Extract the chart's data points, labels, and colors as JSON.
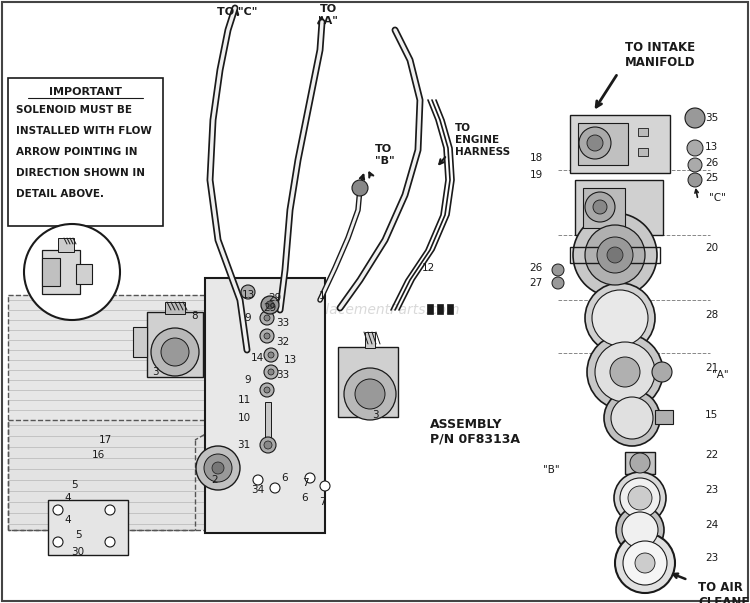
{
  "bg_color": "#ffffff",
  "lc": "#1a1a1a",
  "watermark": "eReplacementParts.com",
  "watermark_color": "#bbbbbb",
  "important_text": [
    "IMPORTANT",
    "SOLENOID MUST BE",
    "INSTALLED WITH FLOW",
    "ARROW POINTING IN",
    "DIRECTION SHOWN IN",
    "DETAIL ABOVE."
  ],
  "assembly_text": "ASSEMBLY\nP/N 0F8313A",
  "to_intake": "TO INTAKE\nMANIFOLD",
  "to_air": "TO AIR\nCLEANER"
}
